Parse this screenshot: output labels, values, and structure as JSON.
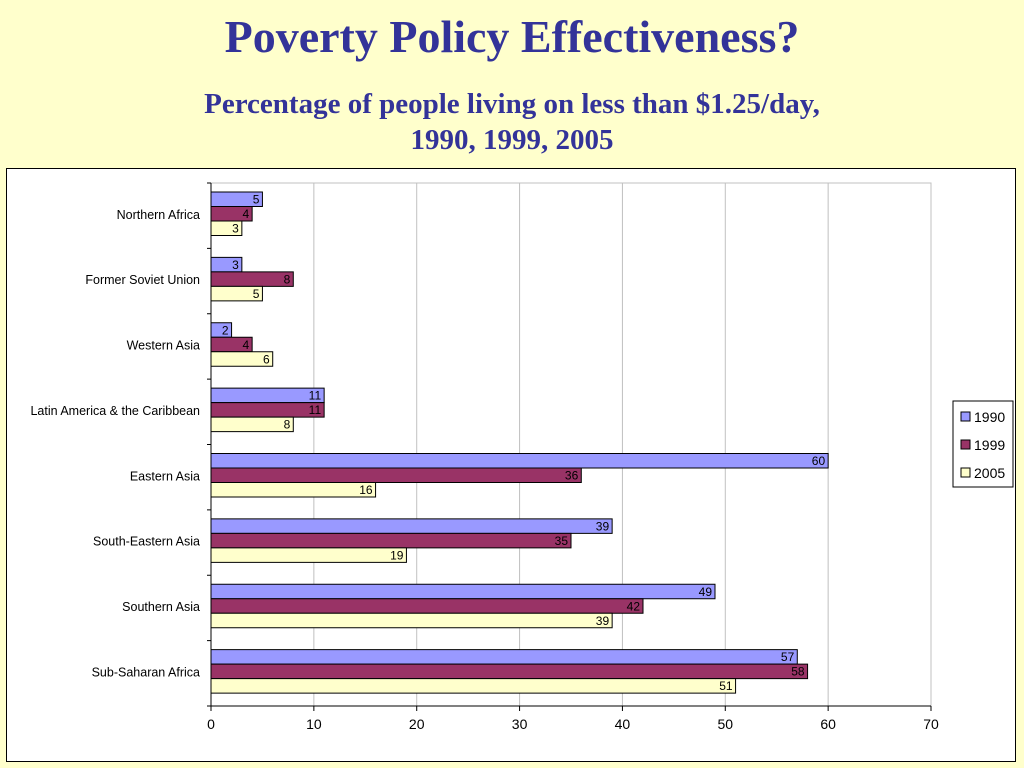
{
  "slide": {
    "title": "Poverty Policy Effectiveness?",
    "subtitle_line1": "Percentage of people living on less than $1.25/day,",
    "subtitle_line2": "1990, 1999, 2005"
  },
  "colors": {
    "background": "#ffffcc",
    "title": "#333399",
    "series_1990": "#9999ff",
    "series_1999": "#993366",
    "series_2005": "#ffffcc"
  },
  "chart_data": {
    "type": "bar",
    "orientation": "horizontal",
    "categories": [
      "Northern Africa",
      "Former Soviet Union",
      "Western Asia",
      "Latin America & the Caribbean",
      "Eastern Asia",
      "South-Eastern Asia",
      "Southern Asia",
      "Sub-Saharan Africa"
    ],
    "series": [
      {
        "name": "1990",
        "color": "#9999ff",
        "values": [
          5,
          3,
          2,
          11,
          60,
          39,
          49,
          57
        ]
      },
      {
        "name": "1999",
        "color": "#993366",
        "values": [
          4,
          8,
          4,
          11,
          36,
          35,
          42,
          58
        ]
      },
      {
        "name": "2005",
        "color": "#ffffcc",
        "values": [
          3,
          5,
          6,
          8,
          16,
          19,
          39,
          51
        ]
      }
    ],
    "xlim": [
      0,
      70
    ],
    "xticks": [
      0,
      10,
      20,
      30,
      40,
      50,
      60,
      70
    ],
    "grid": true,
    "legend": "right",
    "data_labels": true
  }
}
